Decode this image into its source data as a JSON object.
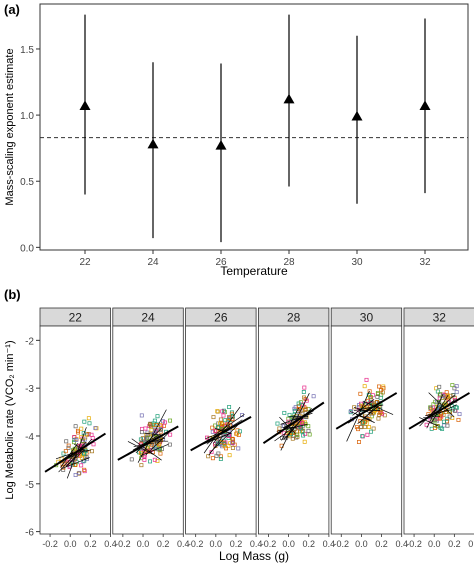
{
  "chart_data": [
    {
      "type": "scatter",
      "panel_label": "(a)",
      "xlabel": "Temperature",
      "ylabel": "Mass-scaling exponent estimate",
      "x_ticks": [
        "22",
        "24",
        "26",
        "28",
        "30",
        "32"
      ],
      "y_ticks": [
        "0.0",
        "0.5",
        "1.0",
        "1.5"
      ],
      "ylim": [
        -0.02,
        1.84
      ],
      "reference_line": 0.83,
      "points": [
        {
          "x": "22",
          "y": 1.07,
          "lower": 0.4,
          "upper": 1.76
        },
        {
          "x": "24",
          "y": 0.78,
          "lower": 0.07,
          "upper": 1.4
        },
        {
          "x": "26",
          "y": 0.77,
          "lower": 0.04,
          "upper": 1.39
        },
        {
          "x": "28",
          "y": 1.12,
          "lower": 0.46,
          "upper": 1.76
        },
        {
          "x": "30",
          "y": 0.99,
          "lower": 0.33,
          "upper": 1.6
        },
        {
          "x": "32",
          "y": 1.07,
          "lower": 0.41,
          "upper": 1.73
        }
      ],
      "grid": false,
      "legend": false
    },
    {
      "type": "scatter",
      "panel_label": "(b)",
      "xlabel": "Log Mass (g)",
      "ylabel": "Log Metabolic rate (VCO₂ min⁻¹)",
      "x_ticks": [
        "-0.2",
        "0.0",
        "0.2",
        "0.4"
      ],
      "y_ticks": [
        "-6",
        "-5",
        "-4",
        "-3",
        "-2"
      ],
      "xlim": [
        -0.3,
        0.4
      ],
      "ylim": [
        -6.05,
        -1.7
      ],
      "facets": [
        "22",
        "24",
        "26",
        "28",
        "30",
        "32"
      ],
      "overall_fits": [
        {
          "facet": "22",
          "x0": -0.25,
          "y0": -4.75,
          "x1": 0.35,
          "y1": -3.95
        },
        {
          "facet": "24",
          "x0": -0.25,
          "y0": -4.5,
          "x1": 0.35,
          "y1": -3.8
        },
        {
          "facet": "26",
          "x0": -0.25,
          "y0": -4.3,
          "x1": 0.35,
          "y1": -3.6
        },
        {
          "facet": "28",
          "x0": -0.25,
          "y0": -4.15,
          "x1": 0.35,
          "y1": -3.3
        },
        {
          "facet": "30",
          "x0": -0.25,
          "y0": -3.85,
          "x1": 0.35,
          "y1": -3.1
        },
        {
          "facet": "32",
          "x0": -0.25,
          "y0": -3.85,
          "x1": 0.35,
          "y1": -3.1
        }
      ],
      "point_colors": [
        "#1b9e77",
        "#d95f02",
        "#7570b3",
        "#e7298a",
        "#66a61e",
        "#e6ab02",
        "#a6761d",
        "#666666"
      ],
      "grid": false,
      "legend": false
    }
  ]
}
